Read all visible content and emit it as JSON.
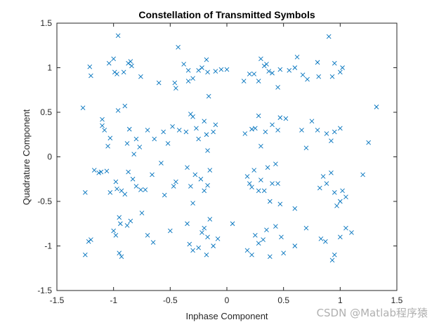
{
  "chart_data": {
    "type": "scatter",
    "title": "Constellation of Transmitted Symbols",
    "xlabel": "Inphase Component",
    "ylabel": "Quadrature Component",
    "xlim": [
      -1.5,
      1.5
    ],
    "ylim": [
      -1.5,
      1.5
    ],
    "xticks": [
      -1.5,
      -1,
      -0.5,
      0,
      0.5,
      1,
      1.5
    ],
    "xtick_labels": [
      "-1.5",
      "-1",
      "-0.5",
      "0",
      "0.5",
      "1",
      "1.5"
    ],
    "yticks": [
      -1.5,
      -1,
      -0.5,
      0,
      0.5,
      1,
      1.5
    ],
    "ytick_labels": [
      "-1.5",
      "-1",
      "-0.5",
      "0",
      "0.5",
      "1",
      "1.5"
    ],
    "grid": false,
    "marker": "x",
    "color": "#0072BD",
    "points": [
      [
        -1.21,
        1.01
      ],
      [
        -1.2,
        0.91
      ],
      [
        -1.04,
        1.05
      ],
      [
        -1.0,
        1.1
      ],
      [
        -0.99,
        0.95
      ],
      [
        -0.97,
        0.93
      ],
      [
        -0.96,
        1.36
      ],
      [
        -0.91,
        0.95
      ],
      [
        -0.87,
        1.05
      ],
      [
        -0.85,
        1.07
      ],
      [
        -0.84,
        1.02
      ],
      [
        -0.76,
        0.9
      ],
      [
        -0.6,
        0.83
      ],
      [
        -0.46,
        0.83
      ],
      [
        -0.45,
        0.77
      ],
      [
        -0.43,
        1.23
      ],
      [
        -0.38,
        1.04
      ],
      [
        -0.34,
        0.97
      ],
      [
        -0.34,
        0.85
      ],
      [
        -0.3,
        0.88
      ],
      [
        -0.25,
        0.97
      ],
      [
        -0.22,
        1.0
      ],
      [
        -0.18,
        1.09
      ],
      [
        -0.17,
        0.95
      ],
      [
        -0.16,
        0.68
      ],
      [
        -0.1,
        0.96
      ],
      [
        -0.05,
        0.98
      ],
      [
        0.0,
        0.98
      ],
      [
        0.15,
        0.85
      ],
      [
        0.2,
        0.93
      ],
      [
        0.24,
        0.93
      ],
      [
        0.28,
        0.85
      ],
      [
        0.3,
        1.1
      ],
      [
        0.33,
        1.02
      ],
      [
        0.35,
        1.04
      ],
      [
        0.37,
        0.96
      ],
      [
        0.4,
        0.94
      ],
      [
        0.45,
        0.78
      ],
      [
        0.47,
        0.98
      ],
      [
        0.55,
        0.97
      ],
      [
        0.6,
        1.0
      ],
      [
        0.62,
        1.12
      ],
      [
        0.67,
        0.92
      ],
      [
        0.71,
        0.87
      ],
      [
        0.8,
        1.06
      ],
      [
        0.81,
        0.9
      ],
      [
        0.9,
        1.35
      ],
      [
        0.93,
        0.9
      ],
      [
        0.95,
        1.05
      ],
      [
        1.0,
        0.95
      ],
      [
        1.02,
        1.0
      ],
      [
        -1.27,
        0.55
      ],
      [
        -1.1,
        0.42
      ],
      [
        -1.1,
        0.35
      ],
      [
        -1.08,
        0.3
      ],
      [
        -1.05,
        0.12
      ],
      [
        -1.03,
        0.21
      ],
      [
        -0.96,
        0.52
      ],
      [
        -0.9,
        0.57
      ],
      [
        -0.88,
        0.15
      ],
      [
        -0.86,
        0.31
      ],
      [
        -0.82,
        0.03
      ],
      [
        -0.8,
        0.2
      ],
      [
        -0.77,
        0.11
      ],
      [
        -0.7,
        0.3
      ],
      [
        -0.64,
        0.2
      ],
      [
        -0.56,
        0.28
      ],
      [
        -0.52,
        0.15
      ],
      [
        -0.48,
        0.34
      ],
      [
        -0.42,
        0.3
      ],
      [
        -0.36,
        0.28
      ],
      [
        -0.32,
        0.48
      ],
      [
        -0.3,
        0.45
      ],
      [
        -0.27,
        0.32
      ],
      [
        -0.25,
        0.2
      ],
      [
        -0.2,
        0.4
      ],
      [
        -0.18,
        0.25
      ],
      [
        -0.17,
        0.07
      ],
      [
        -0.12,
        0.28
      ],
      [
        -0.1,
        0.36
      ],
      [
        0.16,
        0.26
      ],
      [
        0.22,
        0.31
      ],
      [
        0.25,
        0.32
      ],
      [
        0.28,
        0.46
      ],
      [
        0.3,
        0.12
      ],
      [
        0.34,
        0.28
      ],
      [
        0.4,
        0.36
      ],
      [
        0.45,
        0.3
      ],
      [
        0.47,
        0.44
      ],
      [
        0.52,
        0.43
      ],
      [
        0.66,
        0.3
      ],
      [
        0.7,
        0.1
      ],
      [
        0.75,
        0.4
      ],
      [
        0.8,
        0.3
      ],
      [
        0.88,
        0.26
      ],
      [
        0.92,
        0.18
      ],
      [
        0.95,
        0.28
      ],
      [
        1.0,
        0.32
      ],
      [
        1.25,
        0.16
      ],
      [
        1.32,
        0.56
      ],
      [
        -1.25,
        -0.4
      ],
      [
        -1.17,
        -0.15
      ],
      [
        -1.13,
        -0.18
      ],
      [
        -1.11,
        -0.17
      ],
      [
        -1.06,
        -0.16
      ],
      [
        -1.03,
        -0.4
      ],
      [
        -0.98,
        -0.28
      ],
      [
        -0.97,
        -0.36
      ],
      [
        -0.93,
        -0.38
      ],
      [
        -0.9,
        -0.42
      ],
      [
        -0.87,
        -0.17
      ],
      [
        -0.83,
        -0.25
      ],
      [
        -0.8,
        -0.33
      ],
      [
        -0.76,
        -0.37
      ],
      [
        -0.72,
        -0.37
      ],
      [
        -0.66,
        -0.2
      ],
      [
        -0.58,
        -0.07
      ],
      [
        -0.55,
        -0.43
      ],
      [
        -0.47,
        -0.33
      ],
      [
        -0.45,
        -0.28
      ],
      [
        -0.35,
        -0.12
      ],
      [
        -0.32,
        -0.33
      ],
      [
        -0.3,
        -0.52
      ],
      [
        -0.28,
        -0.2
      ],
      [
        -0.23,
        -0.25
      ],
      [
        -0.2,
        -0.38
      ],
      [
        -0.17,
        -0.32
      ],
      [
        -0.15,
        -0.15
      ],
      [
        0.18,
        -0.22
      ],
      [
        0.2,
        -0.3
      ],
      [
        0.22,
        -0.34
      ],
      [
        0.24,
        -0.15
      ],
      [
        0.28,
        -0.38
      ],
      [
        0.3,
        -0.26
      ],
      [
        0.33,
        -0.38
      ],
      [
        0.36,
        -0.12
      ],
      [
        0.38,
        -0.5
      ],
      [
        0.4,
        -0.3
      ],
      [
        0.43,
        -0.08
      ],
      [
        0.45,
        -0.3
      ],
      [
        0.47,
        -0.53
      ],
      [
        0.6,
        -0.58
      ],
      [
        0.82,
        -0.35
      ],
      [
        0.85,
        -0.22
      ],
      [
        0.88,
        -0.3
      ],
      [
        0.92,
        -0.18
      ],
      [
        0.95,
        -0.4
      ],
      [
        0.97,
        -0.55
      ],
      [
        1.0,
        -0.5
      ],
      [
        1.02,
        -0.38
      ],
      [
        1.05,
        -0.45
      ],
      [
        1.2,
        -0.2
      ],
      [
        -1.25,
        -1.1
      ],
      [
        -1.22,
        -0.95
      ],
      [
        -1.2,
        -0.93
      ],
      [
        -1.0,
        -0.83
      ],
      [
        -0.98,
        -0.88
      ],
      [
        -0.95,
        -0.68
      ],
      [
        -0.94,
        -0.75
      ],
      [
        -0.93,
        -1.12
      ],
      [
        -0.95,
        -1.08
      ],
      [
        -0.88,
        -0.77
      ],
      [
        -0.85,
        -0.72
      ],
      [
        -0.75,
        -0.63
      ],
      [
        -0.7,
        -0.88
      ],
      [
        -0.65,
        -0.96
      ],
      [
        -0.5,
        -0.83
      ],
      [
        -0.35,
        -0.75
      ],
      [
        -0.33,
        -0.98
      ],
      [
        -0.3,
        -1.05
      ],
      [
        -0.25,
        -1.02
      ],
      [
        -0.22,
        -0.85
      ],
      [
        -0.2,
        -0.8
      ],
      [
        -0.17,
        -0.9
      ],
      [
        -0.15,
        -0.7
      ],
      [
        -0.12,
        -1.0
      ],
      [
        -0.08,
        -0.92
      ],
      [
        -0.18,
        -1.1
      ],
      [
        0.05,
        -0.75
      ],
      [
        0.18,
        -1.05
      ],
      [
        0.22,
        -1.1
      ],
      [
        0.25,
        -0.88
      ],
      [
        0.28,
        -0.97
      ],
      [
        0.32,
        -0.93
      ],
      [
        0.35,
        -0.82
      ],
      [
        0.38,
        -1.12
      ],
      [
        0.43,
        -0.78
      ],
      [
        0.48,
        -0.9
      ],
      [
        0.5,
        -1.08
      ],
      [
        0.6,
        -1.0
      ],
      [
        0.7,
        -0.8
      ],
      [
        0.83,
        -0.92
      ],
      [
        0.87,
        -0.95
      ],
      [
        0.93,
        -1.16
      ],
      [
        0.95,
        -1.1
      ],
      [
        1.0,
        -0.9
      ],
      [
        1.05,
        -0.8
      ],
      [
        1.1,
        -0.85
      ]
    ]
  },
  "watermark": "CSDN @Matlab程序猿"
}
